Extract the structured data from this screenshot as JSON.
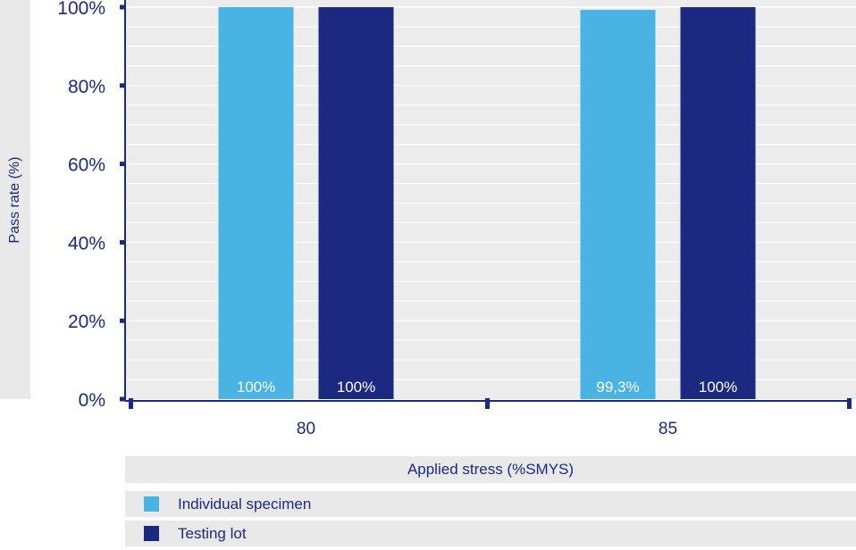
{
  "chart_data": {
    "type": "bar",
    "xlabel": "Applied stress (%SMYS)",
    "ylabel": "Pass  rate (%)",
    "categories": [
      "80",
      "85"
    ],
    "ylim": [
      0,
      100
    ],
    "yticks": [
      "0%",
      "20%",
      "40%",
      "60%",
      "80%",
      "100%"
    ],
    "ytick_values": [
      0,
      20,
      40,
      60,
      80,
      100
    ],
    "grid": true,
    "legend_position": "bottom",
    "series": [
      {
        "name": "Individual specimen",
        "color": "#49b4e4",
        "values": [
          100,
          99.3
        ],
        "labels": [
          "100%",
          "99,3%"
        ]
      },
      {
        "name": "Testing lot",
        "color": "#1b2a80",
        "values": [
          100,
          100
        ],
        "labels": [
          "100%",
          "100%"
        ]
      }
    ]
  }
}
